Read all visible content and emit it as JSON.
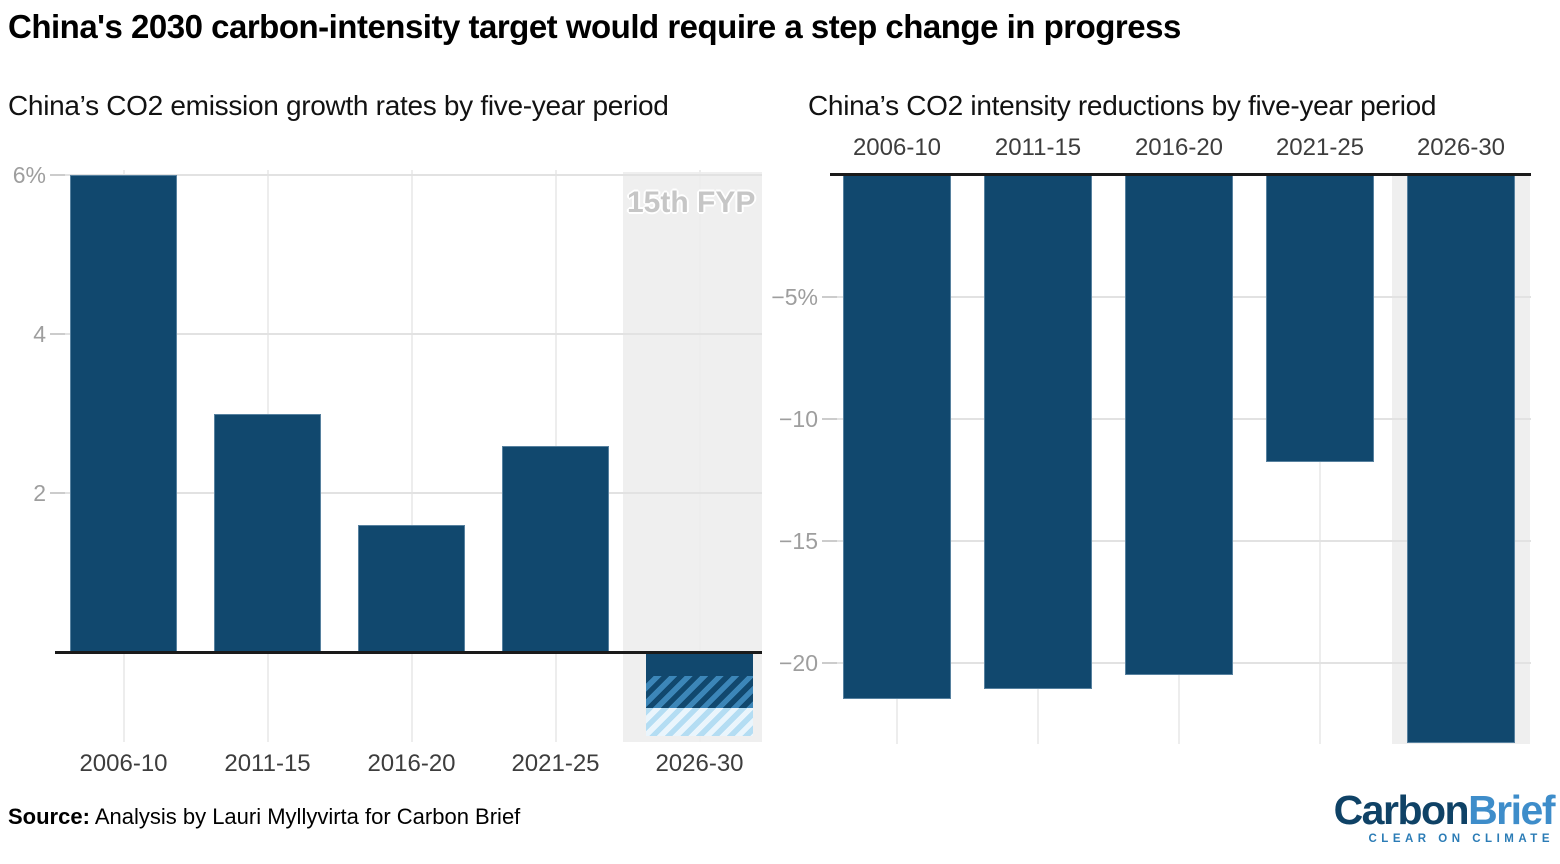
{
  "title": "China's 2030 carbon-intensity target would require a step change in progress",
  "source": {
    "label": "Source:",
    "text": " Analysis by Lauri Myllyvirta for Carbon Brief"
  },
  "logo": {
    "carbon": "Carbon",
    "brief": "Brief",
    "tagline": "CLEAR ON CLIMATE"
  },
  "colors": {
    "bar_navy": "#11486e",
    "hatch_mid_blue": "#3c86b8",
    "hatch_light_blue": "#b4ddf3",
    "hatch_light_bg": "#eaf5fc",
    "highlight_band_gray": "#efefef",
    "annotation_gray": "#c6c6c6",
    "logo_navy": "#0f4266",
    "logo_blue": "#3e8dca"
  },
  "chart_data": [
    {
      "type": "bar",
      "title": "China’s CO2 emission growth rates by five-year period",
      "categories": [
        "2006-10",
        "2011-15",
        "2016-20",
        "2021-25",
        "2026-30"
      ],
      "values": [
        6.0,
        3.0,
        1.6,
        2.6,
        null
      ],
      "projection_last_bar": {
        "category": "2026-30",
        "solid_to": -0.3,
        "dark_hatch_to": -0.7,
        "light_hatch_to": -1.05
      },
      "yticks": [
        {
          "label": "6%",
          "value": 6
        },
        {
          "label": "4",
          "value": 4
        },
        {
          "label": "2",
          "value": 2
        }
      ],
      "ylim": [
        -1.1,
        6.1
      ],
      "unit": "%",
      "grid": true,
      "annotation": "15th FYP",
      "highlight_category": "2026-30",
      "category_label_position": "bottom"
    },
    {
      "type": "bar",
      "title": "China’s CO2 intensity reductions by five-year period",
      "categories": [
        "2006-10",
        "2011-15",
        "2016-20",
        "2021-25",
        "2026-30"
      ],
      "values": [
        -21.5,
        -21.1,
        -20.5,
        -11.8,
        -23.3
      ],
      "yticks": [
        {
          "label": "−5%",
          "value": -5
        },
        {
          "label": "−10",
          "value": -10
        },
        {
          "label": "−15",
          "value": -15
        },
        {
          "label": "−20",
          "value": -20
        }
      ],
      "ylim": [
        -23.4,
        0
      ],
      "unit": "%",
      "grid": true,
      "highlight_category": "2026-30",
      "category_label_position": "top"
    }
  ]
}
